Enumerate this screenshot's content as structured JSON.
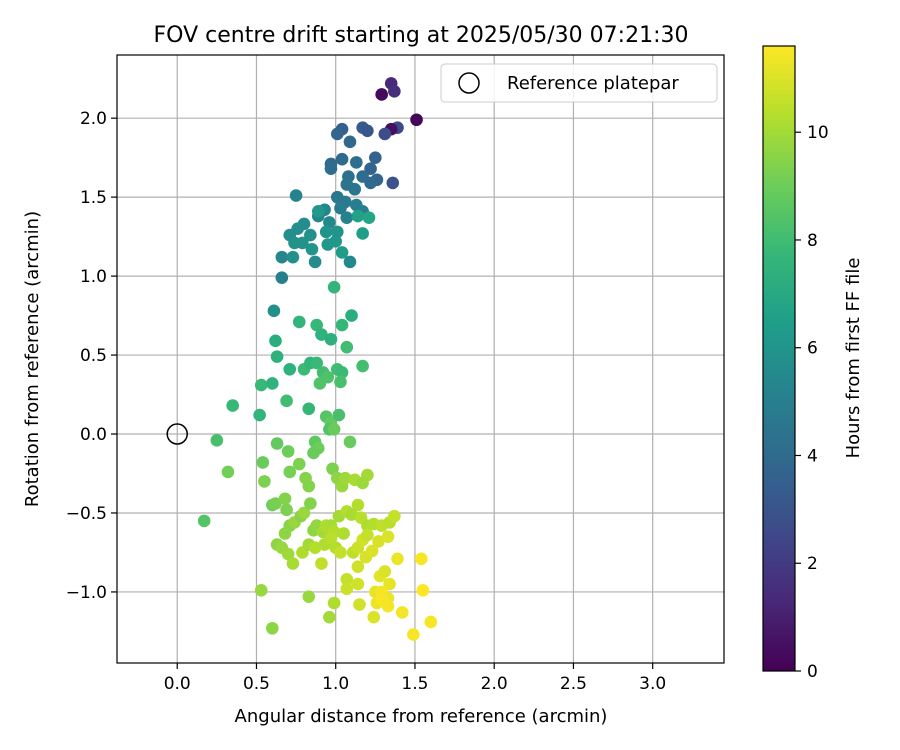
{
  "chart_data": {
    "type": "scatter",
    "title": "FOV centre drift starting at 2025/05/30 07:21:30",
    "xlabel": "Angular distance from reference (arcmin)",
    "ylabel": "Rotation from reference (arcmin)",
    "xlim": [
      -0.38,
      3.45
    ],
    "ylim": [
      -1.45,
      2.4
    ],
    "xticks": [
      0.0,
      0.5,
      1.0,
      1.5,
      2.0,
      2.5,
      3.0
    ],
    "xtick_labels": [
      "0.0",
      "0.5",
      "1.0",
      "1.5",
      "2.0",
      "2.5",
      "3.0"
    ],
    "yticks": [
      -1.0,
      -0.5,
      0.0,
      0.5,
      1.0,
      1.5,
      2.0
    ],
    "ytick_labels": [
      "−1.0",
      "−0.5",
      "0.0",
      "0.5",
      "1.0",
      "1.5",
      "2.0"
    ],
    "grid": true,
    "legend": {
      "placement": "top-right",
      "entries": [
        "Reference platepar"
      ]
    },
    "reference_point": {
      "x": 0.0,
      "y": 0.0
    },
    "colorbar": {
      "label": "Hours from first FF file",
      "colormap": "viridis",
      "range": [
        0,
        11.6
      ],
      "ticks": [
        0,
        2,
        4,
        6,
        8,
        10
      ],
      "tick_labels": [
        "0",
        "2",
        "4",
        "6",
        "8",
        "10"
      ]
    },
    "points": [
      [
        1.35,
        2.22,
        1.4
      ],
      [
        1.29,
        2.15,
        0.3
      ],
      [
        1.37,
        2.17,
        1.6
      ],
      [
        1.51,
        1.99,
        0.2
      ],
      [
        1.39,
        1.94,
        2.5
      ],
      [
        1.35,
        1.93,
        0.5
      ],
      [
        1.31,
        1.9,
        2.7
      ],
      [
        1.17,
        1.94,
        3.3
      ],
      [
        1.04,
        1.93,
        3.5
      ],
      [
        1.01,
        1.9,
        3.8
      ],
      [
        1.09,
        1.85,
        3.9
      ],
      [
        1.2,
        1.92,
        3.1
      ],
      [
        1.25,
        1.75,
        3.6
      ],
      [
        1.22,
        1.68,
        3.7
      ],
      [
        1.36,
        1.59,
        2.9
      ],
      [
        0.97,
        1.71,
        4.0
      ],
      [
        0.97,
        1.68,
        4.1
      ],
      [
        1.04,
        1.74,
        4.0
      ],
      [
        1.13,
        1.72,
        4.2
      ],
      [
        1.17,
        1.63,
        4.1
      ],
      [
        1.26,
        1.61,
        3.8
      ],
      [
        1.22,
        1.59,
        4.0
      ],
      [
        1.08,
        1.63,
        4.3
      ],
      [
        1.07,
        1.58,
        4.4
      ],
      [
        1.12,
        1.55,
        4.5
      ],
      [
        1.01,
        1.5,
        4.6
      ],
      [
        1.06,
        1.47,
        4.7
      ],
      [
        1.03,
        1.43,
        4.8
      ],
      [
        1.13,
        1.45,
        4.9
      ],
      [
        1.17,
        1.41,
        5.0
      ],
      [
        1.07,
        1.37,
        5.1
      ],
      [
        0.75,
        1.51,
        5.2
      ],
      [
        0.89,
        1.38,
        5.3
      ],
      [
        0.93,
        1.42,
        5.4
      ],
      [
        0.96,
        1.34,
        5.5
      ],
      [
        0.8,
        1.33,
        5.6
      ],
      [
        0.76,
        1.3,
        5.7
      ],
      [
        0.84,
        1.26,
        5.8
      ],
      [
        0.79,
        1.21,
        5.9
      ],
      [
        0.71,
        1.26,
        5.7
      ],
      [
        0.74,
        1.21,
        5.9
      ],
      [
        0.85,
        1.17,
        6.0
      ],
      [
        0.87,
        1.09,
        5.6
      ],
      [
        0.66,
        1.12,
        5.4
      ],
      [
        0.73,
        1.12,
        5.8
      ],
      [
        0.95,
        1.2,
        6.1
      ],
      [
        1.0,
        1.22,
        6.2
      ],
      [
        1.01,
        1.28,
        6.0
      ],
      [
        1.04,
        1.15,
        6.4
      ],
      [
        1.09,
        1.09,
        5.5
      ],
      [
        1.14,
        1.38,
        6.6
      ],
      [
        1.17,
        1.27,
        6.5
      ],
      [
        1.21,
        1.37,
        6.8
      ],
      [
        0.94,
        1.28,
        6.0
      ],
      [
        0.89,
        1.41,
        6.2
      ],
      [
        0.66,
        0.99,
        5.0
      ],
      [
        0.61,
        0.78,
        5.8
      ],
      [
        0.62,
        0.59,
        7.2
      ],
      [
        0.63,
        0.49,
        7.4
      ],
      [
        0.77,
        0.71,
        7.6
      ],
      [
        0.88,
        0.69,
        7.8
      ],
      [
        0.91,
        0.63,
        7.5
      ],
      [
        0.97,
        0.6,
        7.3
      ],
      [
        1.04,
        0.69,
        7.7
      ],
      [
        1.07,
        0.55,
        8.0
      ],
      [
        1.1,
        0.75,
        7.2
      ],
      [
        0.99,
        0.93,
        7.6
      ],
      [
        1.17,
        0.43,
        8.1
      ],
      [
        0.71,
        0.41,
        7.4
      ],
      [
        0.8,
        0.41,
        7.9
      ],
      [
        0.84,
        0.45,
        7.6
      ],
      [
        0.88,
        0.45,
        7.8
      ],
      [
        0.92,
        0.39,
        8.1
      ],
      [
        0.95,
        0.36,
        8.3
      ],
      [
        1.01,
        0.41,
        8.0
      ],
      [
        1.04,
        0.39,
        7.9
      ],
      [
        1.03,
        0.33,
        8.2
      ],
      [
        0.9,
        0.32,
        8.4
      ],
      [
        0.53,
        0.31,
        7.8
      ],
      [
        0.6,
        0.32,
        7.5
      ],
      [
        0.35,
        0.18,
        7.8
      ],
      [
        0.52,
        0.12,
        7.6
      ],
      [
        0.69,
        0.21,
        8.0
      ],
      [
        0.83,
        0.16,
        7.7
      ],
      [
        0.94,
        0.11,
        8.5
      ],
      [
        0.97,
        0.07,
        8.8
      ],
      [
        1.02,
        0.12,
        8.2
      ],
      [
        0.96,
        0.03,
        8.4
      ],
      [
        0.99,
        0.03,
        8.9
      ],
      [
        0.25,
        -0.04,
        8.2
      ],
      [
        0.54,
        -0.18,
        8.9
      ],
      [
        0.32,
        -0.24,
        9.1
      ],
      [
        0.55,
        -0.3,
        9.3
      ],
      [
        0.63,
        -0.06,
        8.8
      ],
      [
        0.7,
        -0.11,
        9.0
      ],
      [
        0.71,
        -0.24,
        9.2
      ],
      [
        0.77,
        -0.19,
        9.3
      ],
      [
        0.81,
        -0.28,
        9.5
      ],
      [
        0.83,
        -0.33,
        9.4
      ],
      [
        0.87,
        -0.05,
        8.7
      ],
      [
        0.89,
        -0.09,
        9.0
      ],
      [
        0.86,
        -0.12,
        8.9
      ],
      [
        0.98,
        -0.22,
        9.3
      ],
      [
        1.01,
        -0.28,
        9.6
      ],
      [
        1.04,
        -0.33,
        9.8
      ],
      [
        1.09,
        -0.05,
        8.9
      ],
      [
        1.06,
        -0.28,
        9.9
      ],
      [
        1.12,
        -0.29,
        10.1
      ],
      [
        1.2,
        -0.26,
        10.0
      ],
      [
        1.17,
        -0.31,
        9.9
      ],
      [
        0.6,
        -0.45,
        9.0
      ],
      [
        0.62,
        -0.44,
        9.2
      ],
      [
        0.68,
        -0.41,
        9.4
      ],
      [
        0.69,
        -0.48,
        9.3
      ],
      [
        0.71,
        -0.58,
        9.5
      ],
      [
        0.68,
        -0.63,
        9.6
      ],
      [
        0.74,
        -0.56,
        9.8
      ],
      [
        0.78,
        -0.52,
        9.5
      ],
      [
        0.8,
        -0.5,
        9.8
      ],
      [
        0.84,
        -0.44,
        9.4
      ],
      [
        0.86,
        -0.61,
        9.6
      ],
      [
        0.88,
        -0.58,
        9.7
      ],
      [
        0.92,
        -0.62,
        10.0
      ],
      [
        0.94,
        -0.58,
        10.2
      ],
      [
        0.97,
        -0.58,
        10.1
      ],
      [
        0.99,
        -0.62,
        10.3
      ],
      [
        1.02,
        -0.52,
        10.0
      ],
      [
        1.05,
        -0.63,
        10.2
      ],
      [
        1.07,
        -0.49,
        10.3
      ],
      [
        1.1,
        -0.51,
        10.1
      ],
      [
        1.14,
        -0.45,
        10.3
      ],
      [
        1.16,
        -0.53,
        10.4
      ],
      [
        1.2,
        -0.58,
        10.2
      ],
      [
        1.24,
        -0.57,
        10.3
      ],
      [
        1.29,
        -0.58,
        10.5
      ],
      [
        1.34,
        -0.56,
        10.4
      ],
      [
        1.37,
        -0.52,
        10.6
      ],
      [
        0.17,
        -0.55,
        8.5
      ],
      [
        0.63,
        -0.7,
        9.6
      ],
      [
        0.66,
        -0.72,
        9.8
      ],
      [
        0.7,
        -0.76,
        9.9
      ],
      [
        0.73,
        -0.82,
        10.1
      ],
      [
        0.79,
        -0.75,
        10.2
      ],
      [
        0.83,
        -0.7,
        10.0
      ],
      [
        0.87,
        -0.72,
        10.3
      ],
      [
        0.91,
        -0.82,
        10.5
      ],
      [
        0.93,
        -0.7,
        10.2
      ],
      [
        0.97,
        -0.66,
        10.4
      ],
      [
        1.0,
        -0.72,
        10.3
      ],
      [
        1.03,
        -0.75,
        10.6
      ],
      [
        1.11,
        -0.75,
        10.5
      ],
      [
        1.14,
        -0.72,
        10.7
      ],
      [
        1.17,
        -0.67,
        10.8
      ],
      [
        1.2,
        -0.64,
        10.6
      ],
      [
        1.27,
        -0.68,
        10.9
      ],
      [
        1.33,
        -0.65,
        11.0
      ],
      [
        1.14,
        -0.84,
        10.8
      ],
      [
        1.19,
        -0.78,
        10.9
      ],
      [
        1.23,
        -0.74,
        11.0
      ],
      [
        1.28,
        -0.9,
        11.1
      ],
      [
        1.31,
        -0.87,
        11.0
      ],
      [
        1.34,
        -0.95,
        11.2
      ],
      [
        1.39,
        -0.79,
        11.3
      ],
      [
        1.54,
        -0.79,
        11.5
      ],
      [
        1.07,
        -0.92,
        10.6
      ],
      [
        1.07,
        -0.98,
        10.7
      ],
      [
        1.14,
        -0.95,
        10.8
      ],
      [
        1.25,
        -1.0,
        11.2
      ],
      [
        1.29,
        -1.0,
        11.4
      ],
      [
        1.33,
        -1.04,
        11.3
      ],
      [
        1.26,
        -1.07,
        11.3
      ],
      [
        1.33,
        -1.09,
        11.4
      ],
      [
        1.29,
        -1.05,
        11.5
      ],
      [
        1.42,
        -1.13,
        11.4
      ],
      [
        1.49,
        -1.27,
        11.5
      ],
      [
        1.55,
        -0.99,
        11.6
      ],
      [
        1.6,
        -1.19,
        11.5
      ],
      [
        0.53,
        -0.99,
        9.8
      ],
      [
        0.6,
        -1.23,
        9.6
      ],
      [
        0.83,
        -1.03,
        9.8
      ],
      [
        0.96,
        -1.16,
        10.0
      ],
      [
        0.99,
        -1.07,
        10.2
      ],
      [
        1.15,
        -1.08,
        10.8
      ],
      [
        1.24,
        -1.16,
        11.0
      ]
    ]
  }
}
